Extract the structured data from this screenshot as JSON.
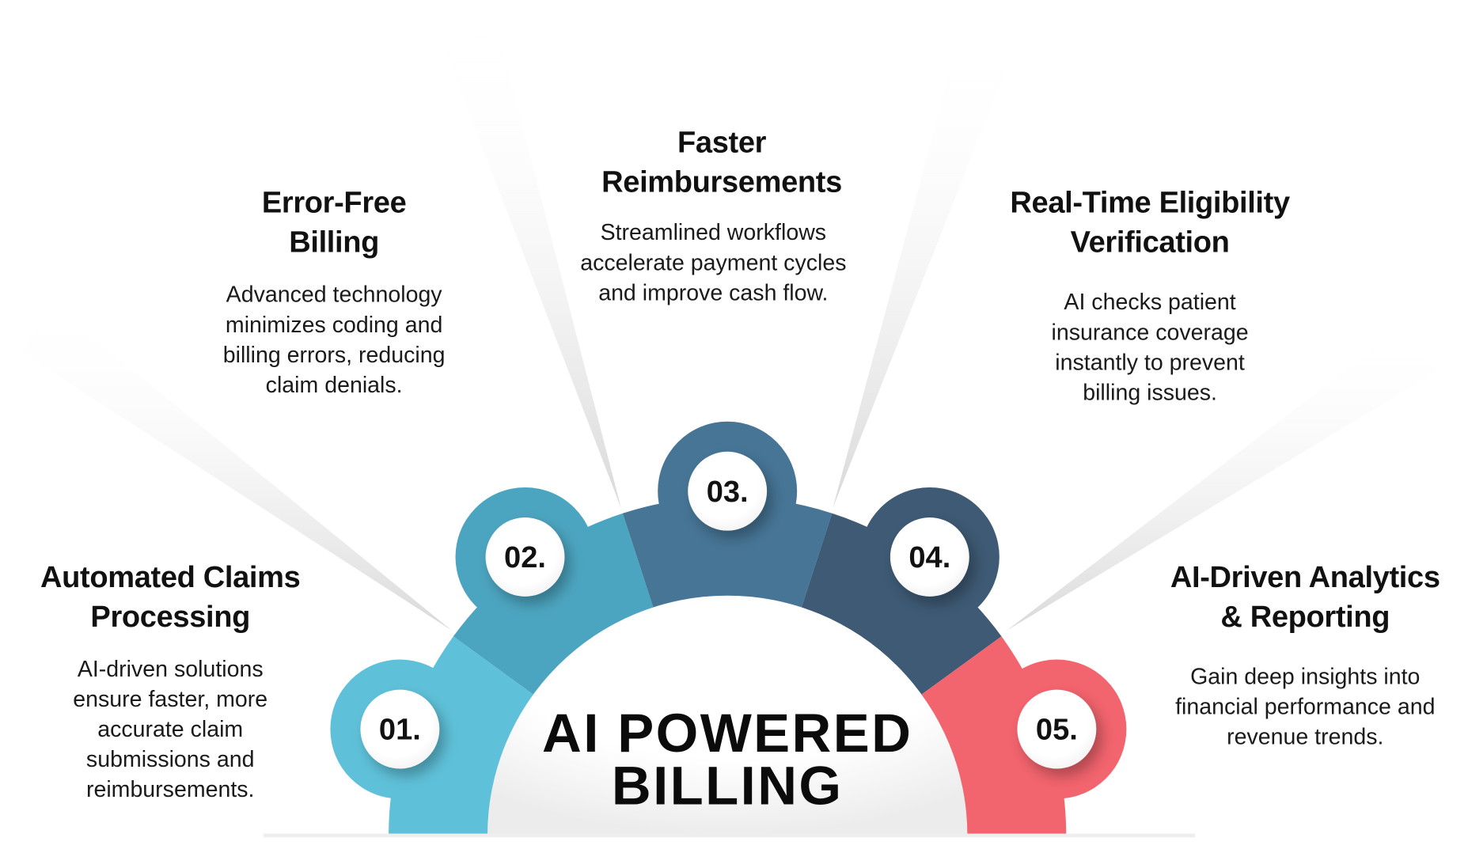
{
  "center": {
    "line1": "AI POWERED",
    "line2": "BILLING"
  },
  "colors": {
    "step1": "#5fc1d9",
    "step2": "#4ca5c0",
    "step3": "#477596",
    "step4": "#3e5a74",
    "step5": "#f2646e"
  },
  "steps": [
    {
      "number": "01.",
      "title_line1": "Automated Claims",
      "title_line2": "Processing",
      "description": "AI-driven solutions ensure faster, more accurate claim submissions and reimbursements."
    },
    {
      "number": "02.",
      "title_line1": "Error-Free",
      "title_line2": "Billing",
      "description": "Advanced technology minimizes coding and billing errors, reducing claim denials."
    },
    {
      "number": "03.",
      "title_line1": "Faster",
      "title_line2": "Reimbursements",
      "description": "Streamlined workflows accelerate payment cycles and improve cash flow."
    },
    {
      "number": "04.",
      "title_line1": "Real-Time Eligibility",
      "title_line2": "Verification",
      "description": "AI checks patient insurance coverage instantly to prevent billing issues."
    },
    {
      "number": "05.",
      "title_line1": "AI-Driven Analytics",
      "title_line2": "& Reporting",
      "description": "Gain deep insights into financial performance and revenue trends."
    }
  ]
}
